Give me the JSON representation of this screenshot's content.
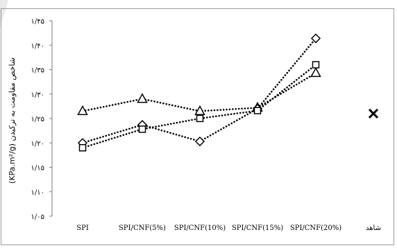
{
  "chart_data": {
    "type": "line",
    "title": "",
    "ylabel": "(KPa.m²/g) شاخص مقاومت به ترکیدن",
    "xlabel": "",
    "categories": [
      "SPI",
      "SPI/CNF(5%)",
      "SPI/CNF(10%)",
      "SPI/CNF(15%)",
      "SPI/CNF(20%)",
      "شاهد"
    ],
    "ylim": [
      1.05,
      1.45
    ],
    "yticks": [
      1.05,
      1.1,
      1.15,
      1.2,
      1.25,
      1.3,
      1.35,
      1.4,
      1.45
    ],
    "ytick_labels": [
      "۱/۰۵",
      "۱/۱۰",
      "۱/۱۵",
      "۱/۲۰",
      "۱/۲۵",
      "۱/۳۰",
      "۱/۳۵",
      "۱/۴۰",
      "۱/۴۵"
    ],
    "grid": false,
    "legend": "none",
    "series": [
      {
        "marker": "triangle",
        "values": [
          1.265,
          1.29,
          1.265,
          1.272,
          1.343,
          null
        ]
      },
      {
        "marker": "diamond",
        "values": [
          1.2,
          1.237,
          1.203,
          1.27,
          1.414,
          null
        ]
      },
      {
        "marker": "square",
        "values": [
          1.19,
          1.228,
          1.25,
          1.266,
          1.36,
          null
        ]
      },
      {
        "marker": "cross",
        "values": [
          null,
          null,
          null,
          null,
          null,
          1.26
        ]
      }
    ],
    "colors": {
      "line": "#000000",
      "axis": "#7a7a7a",
      "frame": "#9a9a9a"
    }
  }
}
